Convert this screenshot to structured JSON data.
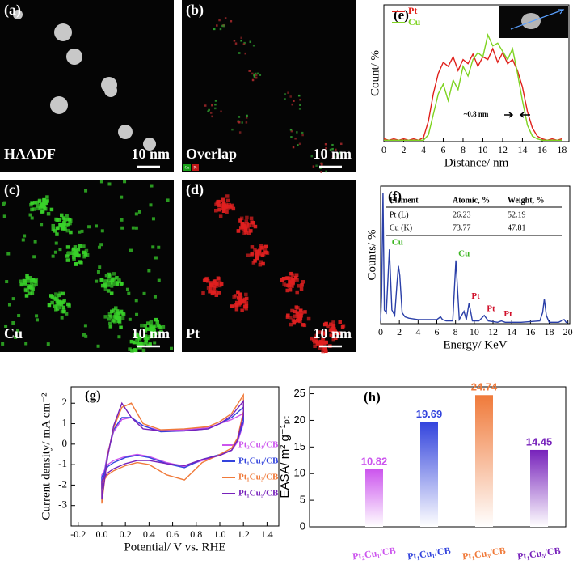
{
  "images": [
    {
      "label": "(a)",
      "caption": "HAADF",
      "scale": "10 nm"
    },
    {
      "label": "(b)",
      "caption": "Overlap",
      "scale": "10 nm",
      "legend": [
        "Cu",
        "Pt"
      ]
    },
    {
      "label": "(c)",
      "caption": "Cu",
      "scale": "10 nm"
    },
    {
      "label": "(d)",
      "caption": "Pt",
      "scale": "10 nm"
    }
  ],
  "chart_data": [
    {
      "type": "line",
      "panel_label": "(e)",
      "xlabel": "Distance/ nm",
      "ylabel": "Count/ %",
      "xlim": [
        0,
        18.7
      ],
      "xticks": [
        0,
        2,
        4,
        6,
        8,
        10,
        12,
        14,
        16,
        18
      ],
      "ylim": [
        0,
        100
      ],
      "legend": "upper left",
      "annotation": "~0.8 nm",
      "x": [
        0,
        0.5,
        1,
        1.5,
        2,
        2.5,
        3,
        3.5,
        4,
        4.5,
        5,
        5.5,
        6,
        6.5,
        7,
        7.5,
        8,
        8.5,
        9,
        9.5,
        10,
        10.5,
        11,
        11.5,
        12,
        12.5,
        13,
        13.5,
        14,
        14.5,
        15,
        15.5,
        16,
        16.5,
        17,
        17.5,
        18
      ],
      "series": [
        {
          "name": "Pt",
          "color": "#e0201b",
          "values": [
            2,
            1,
            2,
            1,
            2,
            1,
            2,
            1,
            3,
            15,
            35,
            50,
            58,
            55,
            62,
            52,
            60,
            57,
            64,
            55,
            62,
            60,
            68,
            58,
            65,
            57,
            60,
            52,
            40,
            22,
            10,
            4,
            2,
            1,
            2,
            1,
            2
          ]
        },
        {
          "name": "Cu",
          "color": "#7ed321",
          "values": [
            1,
            1,
            1,
            1,
            1,
            1,
            1,
            1,
            1,
            5,
            20,
            35,
            42,
            30,
            45,
            38,
            55,
            48,
            60,
            65,
            62,
            78,
            70,
            72,
            66,
            60,
            68,
            50,
            30,
            12,
            4,
            2,
            1,
            1,
            1,
            1,
            1
          ]
        }
      ]
    },
    {
      "type": "line",
      "panel_label": "(f)",
      "xlabel": "Energy/ KeV",
      "ylabel": "Counts/ %",
      "xlim": [
        0,
        20.2
      ],
      "xticks": [
        0,
        2,
        4,
        6,
        8,
        10,
        12,
        14,
        16,
        18,
        20
      ],
      "ylim": [
        0,
        100
      ],
      "x": [
        0,
        0.1,
        0.25,
        0.4,
        0.6,
        0.93,
        1.2,
        1.5,
        1.75,
        1.9,
        2.05,
        2.3,
        2.6,
        3,
        4,
        5,
        6,
        6.4,
        6.6,
        7,
        7.7,
        8.04,
        8.4,
        8.9,
        9.15,
        9.44,
        9.8,
        10.5,
        11.07,
        11.5,
        12.5,
        12.9,
        13.3,
        15,
        17,
        17.3,
        17.48,
        17.7,
        18,
        19,
        19.6,
        19.8,
        20
      ],
      "series": [
        {
          "color": "#2a3fa8",
          "values": [
            2,
            20,
            95,
            10,
            8,
            54,
            10,
            6,
            30,
            42,
            35,
            8,
            5,
            4,
            3,
            3,
            3,
            5,
            3,
            2,
            2,
            46,
            3,
            9,
            3,
            15,
            2,
            2,
            6,
            2,
            1,
            2,
            1,
            1,
            2,
            8,
            18,
            6,
            1,
            1,
            3,
            1,
            1
          ]
        }
      ],
      "peaks": [
        {
          "text": "Cu",
          "x": 0.93,
          "color": "#3cb521"
        },
        {
          "text": "Cu",
          "x": 8.04,
          "color": "#3cb521"
        },
        {
          "text": "Pt",
          "x": 9.44,
          "color": "#d0102a"
        },
        {
          "text": "Pt",
          "x": 11.07,
          "color": "#d0102a"
        },
        {
          "text": "Pt",
          "x": 12.9,
          "color": "#d0102a"
        }
      ],
      "table": {
        "columns": [
          "Element",
          "Atomic, %",
          "Weight, %"
        ],
        "rows": [
          [
            "Pt (L)",
            "26.23",
            "52.19"
          ],
          [
            "Cu (K)",
            "73.77",
            "47.81"
          ]
        ]
      }
    },
    {
      "type": "line",
      "panel_label": "(g)",
      "xlabel": "Potential/ V vs. RHE",
      "ylabel": "Current density/ mA cm⁻²",
      "xlim": [
        -0.26,
        1.5
      ],
      "xticks": [
        -0.2,
        {
          "value": 0,
          "label": "0.0"
        },
        0.2,
        0.4,
        0.6,
        0.8,
        {
          "value": 1,
          "label": "1.0"
        },
        1.2,
        1.4
      ],
      "ylim": [
        -4,
        2.8
      ],
      "yticks": [
        -3,
        -2,
        -1,
        0,
        1,
        2
      ],
      "legend": "lower right",
      "x": [
        0,
        0.05,
        0.1,
        0.17,
        0.25,
        0.35,
        0.5,
        0.7,
        0.9,
        1.0,
        1.1,
        1.2,
        1.2,
        1.15,
        1.1,
        1.0,
        0.85,
        0.7,
        0.55,
        0.4,
        0.3,
        0.2,
        0.1,
        0.05,
        0,
        0
      ],
      "series": [
        {
          "name": "Pt₂Cu₁/CB",
          "color": "#cc55ee",
          "values": [
            -2.0,
            -0.4,
            0.6,
            1.2,
            1.3,
            0.9,
            0.65,
            0.7,
            0.8,
            1.0,
            1.2,
            1.5,
            1.0,
            0.1,
            -0.3,
            -0.55,
            -0.8,
            -1.1,
            -0.9,
            -0.6,
            -0.5,
            -0.6,
            -0.8,
            -1.0,
            -1.5,
            -2.0
          ]
        },
        {
          "name": "Pt₁Cu₁/CB",
          "color": "#3344dd",
          "values": [
            -2.2,
            -0.5,
            0.7,
            1.3,
            1.3,
            0.9,
            0.6,
            0.65,
            0.75,
            1.0,
            1.3,
            1.8,
            1.1,
            0.2,
            -0.3,
            -0.5,
            -0.75,
            -1.15,
            -0.95,
            -0.65,
            -0.55,
            -0.65,
            -0.9,
            -1.1,
            -1.6,
            -2.2
          ]
        },
        {
          "name": "Pt₁Cu₃/CB",
          "color": "#f07a3a",
          "values": [
            -2.9,
            -0.5,
            0.8,
            1.8,
            2.0,
            1.0,
            0.7,
            0.75,
            0.85,
            1.1,
            1.5,
            2.4,
            1.6,
            0.3,
            -0.2,
            -0.5,
            -0.9,
            -1.75,
            -1.5,
            -1.0,
            -0.9,
            -1.05,
            -1.3,
            -1.5,
            -1.9,
            -2.9
          ]
        },
        {
          "name": "Pt₁Cu₅/CB",
          "color": "#7722bb",
          "values": [
            -2.7,
            -0.6,
            0.9,
            2.0,
            1.3,
            0.75,
            0.65,
            0.65,
            0.75,
            1.0,
            1.4,
            2.1,
            1.4,
            0.2,
            -0.3,
            -0.55,
            -0.75,
            -1.05,
            -0.95,
            -0.8,
            -0.8,
            -0.95,
            -1.2,
            -1.4,
            -1.8,
            -2.7
          ]
        }
      ]
    },
    {
      "type": "bar",
      "panel_label": "(h)",
      "ylabel": "EASA/ m² g⁻¹ₚₜ",
      "categories": [
        "Pt₂Cu₁/CB",
        "Pt₁Cu₁/CB",
        "Pt₁Cu₃/CB",
        "Pt₁Cu₅/CB"
      ],
      "values": [
        10.82,
        19.69,
        24.74,
        14.45
      ],
      "colors": [
        "#cc55ee",
        "#3344dd",
        "#f07a3a",
        "#7722bb"
      ],
      "ylim": [
        0,
        26.3
      ],
      "yticks": [
        0,
        5,
        10,
        15,
        20,
        25
      ]
    }
  ]
}
